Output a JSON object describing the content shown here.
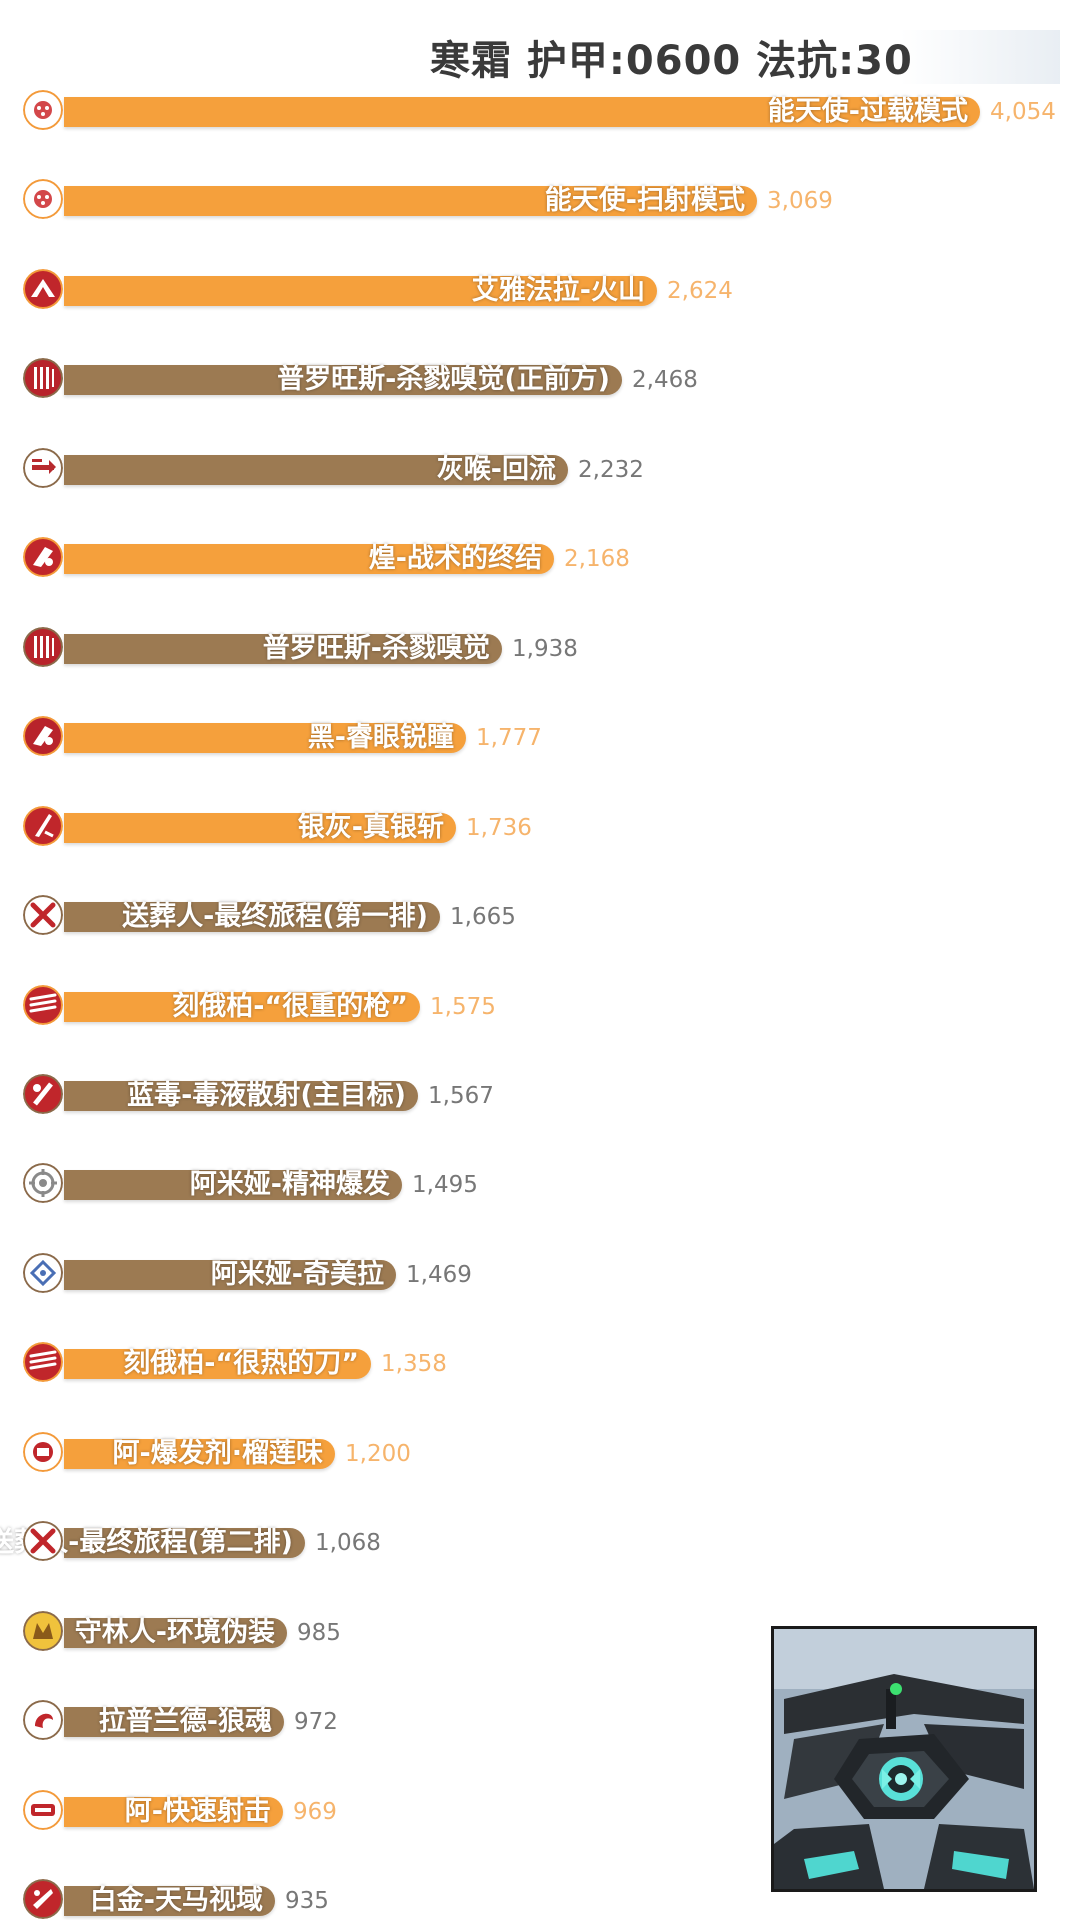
{
  "chart_data": {
    "type": "bar",
    "orientation": "horizontal",
    "title": "寒霜 护甲:0600 法抗:30",
    "xlim": [
      0,
      4054
    ],
    "grid": false,
    "legend": "none",
    "colors": {
      "orange": "#f5a03c",
      "brown": "#9c7a52",
      "orange_text": "#f6b46c",
      "brown_text": "#777777"
    },
    "categories": [
      "能天使-过载模式",
      "能天使-扫射模式",
      "艾雅法拉-火山",
      "普罗旺斯-杀戮嗅觉(正前方)",
      "灰喉-回流",
      "煌-战术的终结",
      "普罗旺斯-杀戮嗅觉",
      "黑-睿眼锐瞳",
      "银灰-真银斩",
      "送葬人-最终旅程(第一排)",
      "刻俄柏-“很重的枪”",
      "蓝毒-毒液散射(主目标)",
      "阿米娅-精神爆发",
      "阿米娅-奇美拉",
      "刻俄柏-“很热的刀”",
      "阿-爆发剂·榴莲味",
      "送葬人-最终旅程(第二排)",
      "守林人-环境伪装",
      "拉普兰德-狼魂",
      "阿-快速射击",
      "白金-天马视域"
    ],
    "values": [
      4054,
      3069,
      2624,
      2468,
      2232,
      2168,
      1938,
      1777,
      1736,
      1665,
      1575,
      1567,
      1495,
      1469,
      1358,
      1200,
      1068,
      985,
      972,
      969,
      935
    ],
    "value_labels": [
      "4,054",
      "3,069",
      "2,624",
      "2,468",
      "2,232",
      "2,168",
      "1,938",
      "1,777",
      "1,736",
      "1,665",
      "1,575",
      "1,567",
      "1,495",
      "1,469",
      "1,358",
      "1,200",
      "1,068",
      "985",
      "972",
      "969",
      "935"
    ],
    "bar_colors": [
      "orange",
      "orange",
      "orange",
      "brown",
      "brown",
      "orange",
      "brown",
      "orange",
      "orange",
      "brown",
      "orange",
      "brown",
      "brown",
      "brown",
      "orange",
      "orange",
      "brown",
      "brown",
      "brown",
      "orange",
      "brown"
    ],
    "icons": [
      "angelina-avatar-icon",
      "angelina-avatar-icon",
      "eyjafjalla-avatar-icon",
      "provence-avatar-icon",
      "greythroat-avatar-icon",
      "blaze-avatar-icon",
      "provence-avatar-icon",
      "schwarz-avatar-icon",
      "silverash-avatar-icon",
      "executor-avatar-icon",
      "ceobe-avatar-icon",
      "blue-poison-avatar-icon",
      "amiya-avatar-icon",
      "amiya-avatar-icon",
      "ceobe-avatar-icon",
      "aak-avatar-icon",
      "executor-avatar-icon",
      "firewatch-avatar-icon",
      "lappland-avatar-icon",
      "aak-avatar-icon",
      "platinum-avatar-icon"
    ]
  },
  "preview": {
    "icon": "enemy-drone-preview-image"
  }
}
